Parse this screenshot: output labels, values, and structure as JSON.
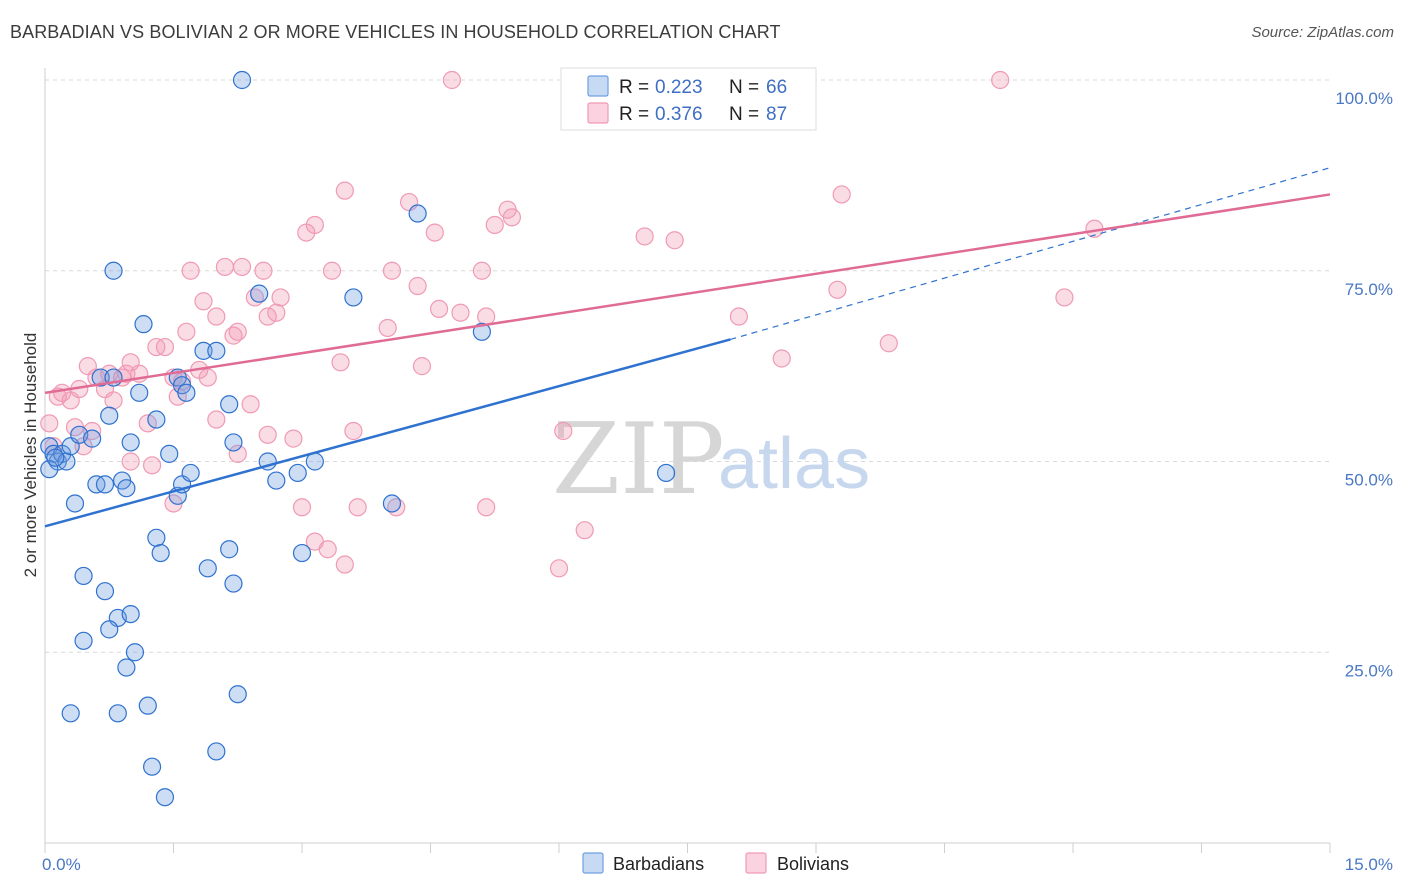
{
  "title": "BARBADIAN VS BOLIVIAN 2 OR MORE VEHICLES IN HOUSEHOLD CORRELATION CHART",
  "source": "Source: ZipAtlas.com",
  "colors": {
    "barbadian": "#6f9fe0",
    "bolivian": "#f09ab5",
    "barbadian_line": "#2f72cf",
    "bolivian_line": "#e06c96",
    "tick_text": "#4a78c4"
  },
  "legend": {
    "r_label": "R =",
    "n_label": "N =",
    "barbadian": {
      "r": "0.223",
      "n": "66"
    },
    "bolivian": {
      "r": "0.376",
      "n": "87"
    }
  },
  "watermark": {
    "zip": "ZIP",
    "atlas": "atlas"
  },
  "chart_data": {
    "type": "scatter",
    "title": "BARBADIAN VS BOLIVIAN 2 OR MORE VEHICLES IN HOUSEHOLD CORRELATION CHART",
    "xlabel": "",
    "ylabel": "2 or more Vehicles in Household",
    "xlim": [
      0,
      15
    ],
    "ylim": [
      0,
      100
    ],
    "x_tick_labels": [
      "0.0%",
      "15.0%"
    ],
    "y_ticks": [
      25,
      50,
      75,
      100
    ],
    "y_tick_labels": [
      "25.0%",
      "50.0%",
      "75.0%",
      "100.0%"
    ],
    "grid": true,
    "legend_position": "top-center",
    "series": [
      {
        "name": "Barbadians",
        "r": 0.223,
        "n": 66,
        "trend": {
          "x0": 0.0,
          "y0": 41.5,
          "x1": 8.0,
          "y1": 66.0,
          "dashed_x1": 15.0,
          "dashed_y1": 88.5
        },
        "points": [
          [
            0.05,
            52.0
          ],
          [
            0.1,
            51.0
          ],
          [
            0.15,
            50.0
          ],
          [
            0.2,
            51.0
          ],
          [
            0.25,
            50.0
          ],
          [
            0.3,
            52.0
          ],
          [
            0.05,
            49.0
          ],
          [
            0.12,
            50.5
          ],
          [
            0.35,
            44.5
          ],
          [
            0.4,
            53.5
          ],
          [
            0.55,
            53.0
          ],
          [
            0.6,
            47.0
          ],
          [
            0.7,
            47.0
          ],
          [
            0.75,
            56.0
          ],
          [
            0.9,
            47.5
          ],
          [
            0.95,
            46.5
          ],
          [
            0.65,
            61.0
          ],
          [
            0.8,
            61.0
          ],
          [
            1.1,
            59.0
          ],
          [
            1.0,
            52.5
          ],
          [
            1.3,
            55.5
          ],
          [
            1.45,
            51.0
          ],
          [
            1.55,
            61.0
          ],
          [
            1.6,
            60.0
          ],
          [
            1.55,
            45.5
          ],
          [
            1.6,
            47.0
          ],
          [
            1.7,
            48.5
          ],
          [
            1.65,
            59.0
          ],
          [
            0.8,
            75.0
          ],
          [
            1.15,
            68.0
          ],
          [
            1.85,
            64.5
          ],
          [
            2.0,
            64.5
          ],
          [
            2.15,
            57.5
          ],
          [
            2.2,
            52.5
          ],
          [
            2.5,
            72.0
          ],
          [
            2.6,
            50.0
          ],
          [
            2.7,
            47.5
          ],
          [
            2.95,
            48.5
          ],
          [
            3.15,
            50.0
          ],
          [
            3.6,
            71.5
          ],
          [
            4.35,
            82.5
          ],
          [
            2.3,
            100.0
          ],
          [
            5.1,
            67.0
          ],
          [
            7.25,
            48.5
          ],
          [
            3.0,
            38.0
          ],
          [
            4.05,
            44.5
          ],
          [
            1.3,
            40.0
          ],
          [
            1.35,
            38.0
          ],
          [
            1.9,
            36.0
          ],
          [
            2.15,
            38.5
          ],
          [
            2.2,
            34.0
          ],
          [
            0.45,
            35.0
          ],
          [
            0.7,
            33.0
          ],
          [
            0.85,
            29.5
          ],
          [
            0.75,
            28.0
          ],
          [
            1.0,
            30.0
          ],
          [
            0.45,
            26.5
          ],
          [
            1.05,
            25.0
          ],
          [
            0.95,
            23.0
          ],
          [
            0.3,
            17.0
          ],
          [
            0.85,
            17.0
          ],
          [
            1.2,
            18.0
          ],
          [
            2.25,
            19.5
          ],
          [
            1.25,
            10.0
          ],
          [
            2.0,
            12.0
          ],
          [
            1.4,
            6.0
          ]
        ]
      },
      {
        "name": "Bolivians",
        "r": 0.376,
        "n": 87,
        "trend": {
          "x0": 0.0,
          "y0": 59.0,
          "x1": 15.0,
          "y1": 85.0
        },
        "points": [
          [
            0.05,
            55.0
          ],
          [
            0.1,
            52.0
          ],
          [
            0.15,
            58.5
          ],
          [
            0.2,
            59.0
          ],
          [
            0.3,
            58.0
          ],
          [
            0.35,
            54.5
          ],
          [
            0.4,
            59.5
          ],
          [
            0.45,
            52.0
          ],
          [
            0.5,
            62.5
          ],
          [
            0.55,
            54.0
          ],
          [
            0.6,
            61.0
          ],
          [
            0.7,
            59.5
          ],
          [
            0.75,
            61.5
          ],
          [
            0.8,
            58.0
          ],
          [
            0.9,
            61.0
          ],
          [
            0.95,
            61.5
          ],
          [
            1.0,
            63.0
          ],
          [
            1.1,
            61.5
          ],
          [
            1.2,
            55.0
          ],
          [
            1.3,
            65.0
          ],
          [
            1.4,
            65.0
          ],
          [
            1.5,
            61.0
          ],
          [
            1.55,
            58.5
          ],
          [
            1.6,
            60.5
          ],
          [
            1.65,
            67.0
          ],
          [
            1.7,
            75.0
          ],
          [
            1.8,
            62.0
          ],
          [
            1.85,
            71.0
          ],
          [
            1.9,
            61.0
          ],
          [
            2.0,
            69.0
          ],
          [
            2.1,
            75.5
          ],
          [
            2.2,
            66.5
          ],
          [
            2.25,
            67.0
          ],
          [
            2.3,
            75.5
          ],
          [
            2.4,
            57.5
          ],
          [
            2.45,
            71.5
          ],
          [
            2.55,
            75.0
          ],
          [
            2.6,
            69.0
          ],
          [
            2.7,
            69.5
          ],
          [
            2.75,
            71.5
          ],
          [
            2.9,
            53.0
          ],
          [
            3.05,
            80.0
          ],
          [
            3.15,
            81.0
          ],
          [
            3.35,
            75.0
          ],
          [
            3.45,
            63.0
          ],
          [
            3.5,
            85.5
          ],
          [
            3.6,
            54.0
          ],
          [
            3.65,
            44.0
          ],
          [
            4.0,
            67.5
          ],
          [
            4.05,
            75.0
          ],
          [
            4.1,
            44.0
          ],
          [
            4.25,
            84.0
          ],
          [
            4.35,
            73.0
          ],
          [
            4.4,
            62.5
          ],
          [
            4.55,
            80.0
          ],
          [
            4.6,
            70.0
          ],
          [
            4.75,
            100.0
          ],
          [
            4.85,
            69.5
          ],
          [
            5.1,
            75.0
          ],
          [
            5.15,
            44.0
          ],
          [
            5.25,
            81.0
          ],
          [
            5.4,
            83.0
          ],
          [
            5.45,
            82.0
          ],
          [
            5.15,
            69.0
          ],
          [
            6.05,
            54.0
          ],
          [
            6.0,
            36.0
          ],
          [
            6.3,
            41.0
          ],
          [
            7.0,
            79.5
          ],
          [
            7.35,
            79.0
          ],
          [
            8.1,
            69.0
          ],
          [
            8.6,
            63.5
          ],
          [
            9.25,
            72.5
          ],
          [
            9.3,
            85.0
          ],
          [
            9.85,
            65.5
          ],
          [
            11.15,
            100.0
          ],
          [
            11.9,
            71.5
          ],
          [
            12.25,
            80.5
          ],
          [
            1.0,
            50.0
          ],
          [
            1.5,
            44.5
          ],
          [
            2.25,
            51.0
          ],
          [
            3.0,
            44.0
          ],
          [
            3.3,
            38.5
          ],
          [
            3.5,
            36.5
          ],
          [
            2.6,
            53.5
          ],
          [
            3.15,
            39.5
          ],
          [
            2.0,
            55.5
          ],
          [
            1.25,
            49.5
          ]
        ]
      }
    ]
  }
}
